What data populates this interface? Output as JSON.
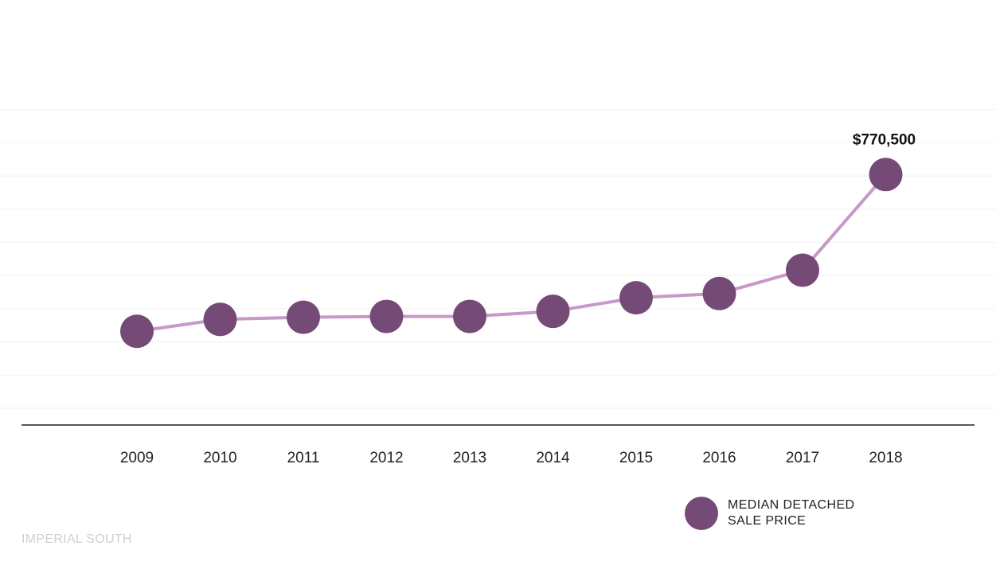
{
  "chart_data": {
    "type": "line",
    "x": [
      "2009",
      "2010",
      "2011",
      "2012",
      "2013",
      "2014",
      "2015",
      "2016",
      "2017",
      "2018"
    ],
    "series": [
      {
        "name": "MEDIAN DETACHED SALE PRICE",
        "values": [
          401000,
          429000,
          434000,
          436000,
          436000,
          448000,
          480000,
          490000,
          545000,
          770500
        ]
      }
    ],
    "annotations": [
      {
        "x": "2018",
        "text": "$770,500"
      }
    ],
    "ylim": [
      180000,
      1000000
    ],
    "grid": true,
    "legend_position": "bottom-right",
    "colors": {
      "line": "#c699c6",
      "marker": "#764a76",
      "gridline": "#f2f2f2",
      "axis": "#222222"
    }
  },
  "legend": {
    "line1": "MEDIAN DETACHED",
    "line2": "SALE PRICE"
  },
  "footer": {
    "brand": "IMPERIAL SOUTH"
  }
}
